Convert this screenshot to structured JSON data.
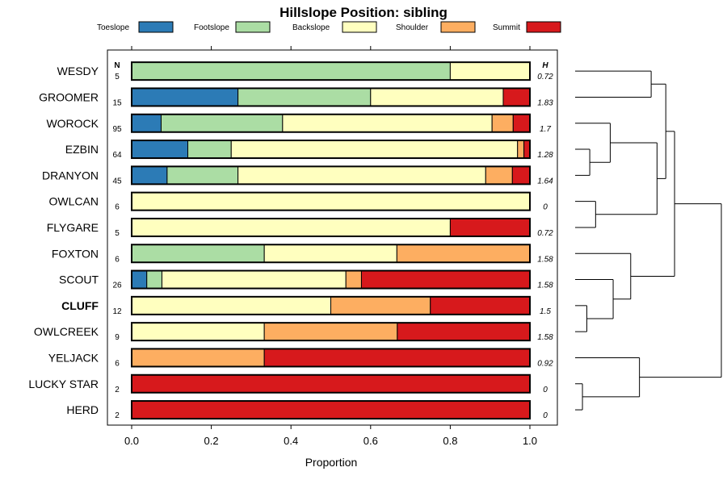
{
  "chart_data": {
    "type": "bar",
    "orientation": "horizontal",
    "stacked": true,
    "title": "Hillslope Position: sibling",
    "xlabel": "Proportion",
    "ylabel": "",
    "xlim": [
      0,
      1
    ],
    "x_ticks": [
      "0.0",
      "0.2",
      "0.4",
      "0.6",
      "0.8",
      "1.0"
    ],
    "n_header": "N",
    "h_header": "H",
    "legend": [
      {
        "name": "Toeslope",
        "color": "#2c7bb6"
      },
      {
        "name": "Footslope",
        "color": "#abdda4"
      },
      {
        "name": "Backslope",
        "color": "#ffffbf"
      },
      {
        "name": "Shoulder",
        "color": "#fdae61"
      },
      {
        "name": "Summit",
        "color": "#d7191c"
      }
    ],
    "categories": [
      "WESDY",
      "GROOMER",
      "WOROCK",
      "EZBIN",
      "DRANYON",
      "OWLCAN",
      "FLYGARE",
      "FOXTON",
      "SCOUT",
      "CLUFF",
      "OWLCREEK",
      "YELJACK",
      "LUCKY STAR",
      "HERD"
    ],
    "highlight": "CLUFF",
    "n": [
      "5",
      "15",
      "95",
      "64",
      "45",
      "6",
      "5",
      "6",
      "26",
      "12",
      "9",
      "6",
      "2",
      "2"
    ],
    "h": [
      "0.72",
      "1.83",
      "1.7",
      "1.28",
      "1.64",
      "0",
      "0.72",
      "1.58",
      "1.58",
      "1.5",
      "1.58",
      "0.92",
      "0",
      "0"
    ],
    "series": [
      {
        "name": "Toeslope",
        "values": [
          0,
          0.267,
          0.074,
          0.141,
          0.089,
          0,
          0,
          0,
          0.038,
          0,
          0,
          0,
          0,
          0
        ]
      },
      {
        "name": "Footslope",
        "values": [
          0.8,
          0.333,
          0.305,
          0.109,
          0.178,
          0,
          0,
          0.333,
          0.038,
          0,
          0,
          0,
          0,
          0
        ]
      },
      {
        "name": "Backslope",
        "values": [
          0.2,
          0.333,
          0.526,
          0.719,
          0.622,
          1.0,
          0.8,
          0.333,
          0.462,
          0.5,
          0.333,
          0,
          0,
          0
        ]
      },
      {
        "name": "Shoulder",
        "values": [
          0,
          0,
          0.053,
          0.016,
          0.067,
          0,
          0,
          0.334,
          0.039,
          0.25,
          0.334,
          0.333,
          0,
          0
        ]
      },
      {
        "name": "Summit",
        "values": [
          0,
          0.067,
          0.042,
          0.015,
          0.044,
          0,
          0.2,
          0,
          0.423,
          0.25,
          0.333,
          0.667,
          1.0,
          1.0
        ]
      }
    ],
    "dendrogram": {
      "merges": [
        [
          -13,
          -14,
          0.05
        ],
        [
          -10,
          -11,
          0.08
        ],
        [
          -4,
          -5,
          0.1
        ],
        [
          -6,
          -7,
          0.14
        ],
        [
          -3,
          3,
          0.24
        ],
        [
          -9,
          2,
          0.26
        ],
        [
          -8,
          6,
          0.38
        ],
        [
          -12,
          1,
          0.44
        ],
        [
          -1,
          -2,
          0.52
        ],
        [
          5,
          4,
          0.56
        ],
        [
          9,
          10,
          0.62
        ],
        [
          11,
          7,
          0.68
        ],
        [
          12,
          8,
          1.0
        ]
      ]
    }
  }
}
